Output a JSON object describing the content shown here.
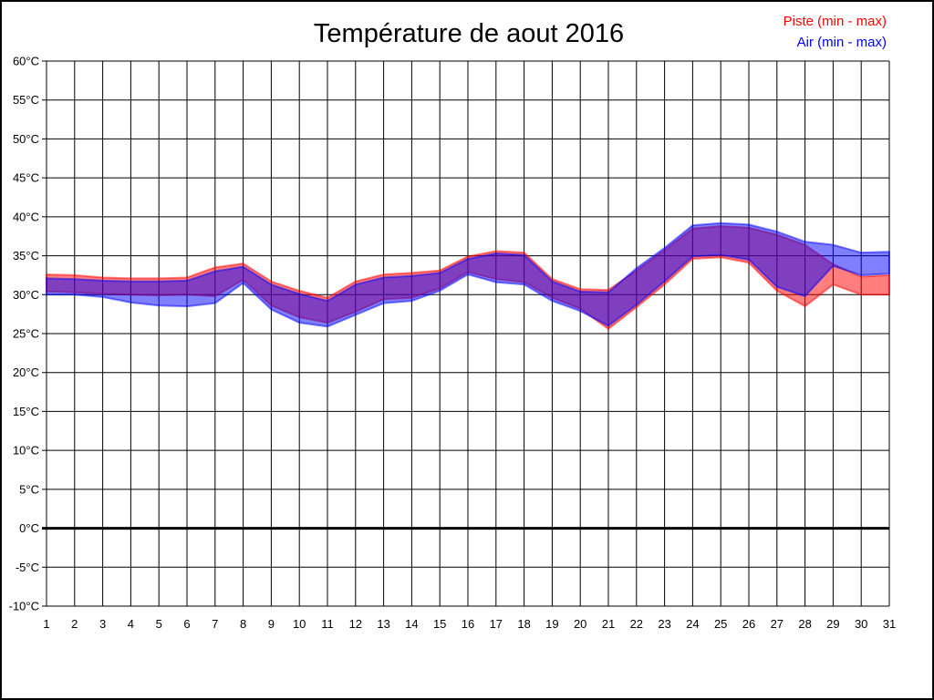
{
  "header": {
    "title": "Température de aout 2016"
  },
  "legend": [
    {
      "label": "Piste (min - max)",
      "color": "#ff0000"
    },
    {
      "label": "Air (min - max)",
      "color": "#0000ff"
    }
  ],
  "axes": {
    "y_labels": [
      "60°C",
      "55°C",
      "50°C",
      "45°C",
      "40°C",
      "35°C",
      "30°C",
      "25°C",
      "20°C",
      "15°C",
      "10°C",
      "5°C",
      "0°C",
      "-5°C",
      "-10°C"
    ],
    "x_labels": [
      "1",
      "2",
      "3",
      "4",
      "5",
      "6",
      "7",
      "8",
      "9",
      "10",
      "11",
      "12",
      "13",
      "14",
      "15",
      "16",
      "17",
      "18",
      "19",
      "20",
      "21",
      "22",
      "23",
      "24",
      "25",
      "26",
      "27",
      "28",
      "29",
      "30",
      "31"
    ]
  },
  "chart_data": {
    "type": "area",
    "title": "Température de aout 2016",
    "xlabel": "",
    "ylabel": "",
    "x": [
      1,
      2,
      3,
      4,
      5,
      6,
      7,
      8,
      9,
      10,
      11,
      12,
      13,
      14,
      15,
      16,
      17,
      18,
      19,
      20,
      21,
      22,
      23,
      24,
      25,
      26,
      27,
      28,
      29,
      30,
      31
    ],
    "xlim": [
      1,
      31
    ],
    "ylim": [
      -10,
      60
    ],
    "ytick_step": 5,
    "ytick_suffix": "°C",
    "grid": true,
    "zero_line_bold": true,
    "legend_position": "top-right",
    "band_opacity": 0.5,
    "series": [
      {
        "name": "Piste (min - max)",
        "color": "#ff0000",
        "min": [
          30.4,
          30.3,
          30.1,
          30.0,
          29.9,
          30.0,
          29.8,
          31.9,
          28.6,
          27.1,
          26.4,
          27.8,
          29.4,
          29.6,
          30.8,
          32.9,
          32.0,
          31.6,
          29.6,
          28.2,
          25.6,
          28.4,
          31.3,
          34.6,
          34.8,
          34.1,
          30.5,
          28.5,
          31.3,
          30.0,
          30.0
        ],
        "max": [
          32.6,
          32.5,
          32.2,
          32.1,
          32.1,
          32.2,
          33.5,
          34.0,
          31.7,
          30.5,
          29.6,
          31.7,
          32.6,
          32.8,
          33.1,
          34.9,
          35.6,
          35.4,
          32.0,
          30.7,
          30.6,
          33.1,
          35.7,
          38.5,
          38.8,
          38.6,
          37.7,
          36.4,
          33.9,
          32.3,
          32.5
        ]
      },
      {
        "name": "Air (min - max)",
        "color": "#0000ff",
        "min": [
          30.0,
          30.0,
          29.7,
          29.0,
          28.6,
          28.5,
          28.9,
          31.5,
          28.1,
          26.4,
          25.9,
          27.4,
          28.9,
          29.2,
          30.5,
          32.6,
          31.6,
          31.3,
          29.2,
          27.9,
          26.0,
          28.7,
          31.7,
          34.9,
          35.1,
          34.5,
          31.0,
          29.8,
          33.7,
          32.5,
          32.7
        ],
        "max": [
          32.1,
          32.0,
          31.8,
          31.7,
          31.7,
          31.8,
          33.0,
          33.6,
          31.3,
          30.1,
          29.2,
          31.3,
          32.2,
          32.4,
          32.8,
          34.6,
          35.3,
          35.1,
          31.7,
          30.4,
          30.3,
          33.4,
          36.0,
          38.9,
          39.2,
          39.0,
          38.1,
          36.8,
          36.4,
          35.4,
          35.5
        ]
      }
    ]
  }
}
